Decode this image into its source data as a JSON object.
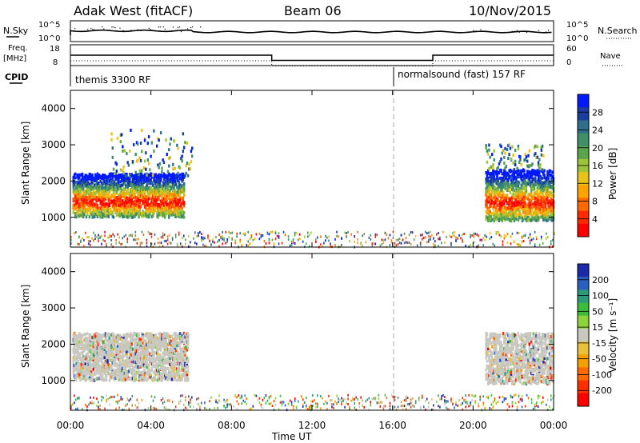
{
  "header": {
    "radar": "Adak West (fitACF)",
    "beam": "Beam 06",
    "date": "10/Nov/2015"
  },
  "top_panels": {
    "nsky_label": "N.Sky",
    "nsky_ticks": [
      "10^5",
      "10^0"
    ],
    "nsearch_label": "N.Search",
    "nsearch_ticks": [
      "10^5",
      "10^0"
    ],
    "freq_label_1": "Freq.",
    "freq_label_2": "[MHz]",
    "freq_ticks": [
      "18",
      "8"
    ],
    "nave_label": "Nave",
    "nave_ticks": [
      "60",
      "0"
    ],
    "cpid_label": "CPID",
    "cpid_modes": [
      "themis 3300 RF",
      "normalsound (fast) 157 RF"
    ]
  },
  "axes": {
    "x_ticks": [
      "00:00",
      "04:00",
      "08:00",
      "12:00",
      "16:00",
      "20:00",
      "00:00"
    ],
    "x_label": "Time UT",
    "y_label": "Slant Range [km]",
    "y_ticks": [
      "1000",
      "2000",
      "3000",
      "4000"
    ]
  },
  "colorbars": {
    "power_label": "Power [dB]",
    "power_ticks": [
      "28",
      "24",
      "20",
      "16",
      "12",
      "8",
      "4"
    ],
    "power_colors": [
      "#0019ff",
      "#1b3d9e",
      "#2f6f8e",
      "#3f8f6a",
      "#5aa54a",
      "#9cc43a",
      "#e6c21a",
      "#ffa300",
      "#ff6a00",
      "#ff2a00",
      "#ff0000"
    ],
    "velocity_label": "Velocity [m s⁻¹]",
    "velocity_ticks": [
      "200",
      "100",
      "50",
      "15",
      "-15",
      "-50",
      "-100",
      "-200"
    ],
    "velocity_colors": [
      "#1a2aa8",
      "#2b5fbf",
      "#2c9a7a",
      "#3dbb3d",
      "#8fd33a",
      "#c8c8c0",
      "#e8c23a",
      "#f5a000",
      "#ff6a00",
      "#ff3000",
      "#ff0000"
    ]
  },
  "chart_data": {
    "type": "heatmap",
    "xlim_hours": [
      0,
      24
    ],
    "ylim_km": [
      180,
      4500
    ],
    "mode_change_hour": 16,
    "power_panel": {
      "scatter_blobs": [
        {
          "t0": 0.1,
          "t1": 5.6,
          "r0": 1000,
          "r1": 2200,
          "level": "high"
        },
        {
          "t0": 2.0,
          "t1": 6.0,
          "r0": 2100,
          "r1": 3400,
          "level": "mixed"
        },
        {
          "t0": 20.6,
          "t1": 24.0,
          "r0": 900,
          "r1": 2300,
          "level": "high"
        },
        {
          "t0": 20.6,
          "t1": 23.5,
          "r0": 2300,
          "r1": 3000,
          "level": "mixed"
        }
      ],
      "ground_band": {
        "t0": 0.0,
        "t1": 24.0,
        "r0": 180,
        "r1": 600
      }
    },
    "velocity_panel": {
      "scatter_blobs": [
        {
          "t0": 0.1,
          "t1": 5.8,
          "r0": 1000,
          "r1": 2300,
          "level": "low"
        },
        {
          "t0": 20.6,
          "t1": 24.0,
          "r0": 900,
          "r1": 2300,
          "level": "low"
        }
      ],
      "ground_band": {
        "t0": 0.0,
        "t1": 24.0,
        "r0": 180,
        "r1": 600
      }
    },
    "frequency_steps": [
      {
        "t0": 0,
        "t1": 10,
        "value_mhz": 13
      },
      {
        "t0": 10,
        "t1": 18,
        "value_mhz": 10.5
      },
      {
        "t0": 18,
        "t1": 24,
        "value_mhz": 13
      }
    ]
  }
}
